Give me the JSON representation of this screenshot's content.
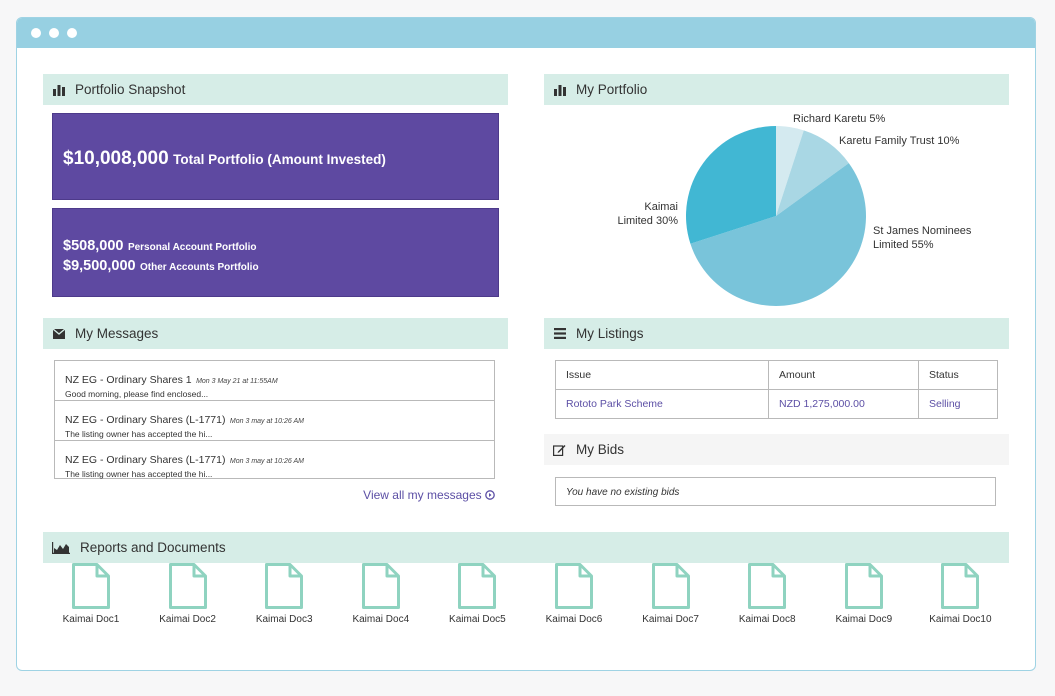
{
  "window": {
    "dots": [
      "dot",
      "dot",
      "dot"
    ]
  },
  "snapshot": {
    "title": "Portfolio Snapshot",
    "total_amount": "$10,008,000",
    "total_label": "Total Portfolio (Amount Invested)",
    "personal_amount": "$508,000",
    "personal_label": "Personal Account Portfolio",
    "other_amount": "$9,500,000",
    "other_label": "Other Accounts Portfolio"
  },
  "portfolio": {
    "title": "My Portfolio",
    "chart_data": {
      "type": "pie",
      "title": "My Portfolio",
      "slices": [
        {
          "label": "Richard Karetu",
          "value": 5,
          "color": "#d4eaf0"
        },
        {
          "label": "Karetu Family Trust",
          "value": 10,
          "color": "#a9d7e4"
        },
        {
          "label": "St James Nominees Limited",
          "value": 55,
          "color": "#79c4da"
        },
        {
          "label": "Kaimai Limited",
          "value": 30,
          "color": "#41b7d3"
        }
      ],
      "labels": {
        "richard": "Richard Karetu 5%",
        "karetu": "Karetu Family Trust 10%",
        "stjames_1": "St James Nominees",
        "stjames_2": "Limited 55%",
        "kaimai_1": "Kaimai",
        "kaimai_2": "Limited 30%"
      }
    }
  },
  "messages": {
    "title": "My Messages",
    "items": [
      {
        "title": "NZ EG - Ordinary Shares 1",
        "date": "Mon 3 May 21 at 11:55AM",
        "body": "Good morning, please find enclosed..."
      },
      {
        "title": "NZ EG - Ordinary Shares (L-1771)",
        "date": "Mon 3 may at 10:26 AM",
        "body": "The listing owner has accepted the hi..."
      },
      {
        "title": "NZ EG - Ordinary Shares (L-1771)",
        "date": "Mon 3 may at 10:26 AM",
        "body": "The listing owner has accepted the hi..."
      }
    ],
    "view_all": "View all my messages"
  },
  "listings": {
    "title": "My Listings",
    "columns": [
      "Issue",
      "Amount",
      "Status"
    ],
    "rows": [
      {
        "issue": "Rototo Park Scheme",
        "amount": "NZD 1,275,000.00",
        "status": "Selling"
      }
    ]
  },
  "bids": {
    "title": "My Bids",
    "empty": "You have no existing bids"
  },
  "reports": {
    "title": "Reports and Documents",
    "docs": [
      "Kaimai Doc1",
      "Kaimai Doc2",
      "Kaimai Doc3",
      "Kaimai Doc4",
      "Kaimai Doc5",
      "Kaimai Doc6",
      "Kaimai Doc7",
      "Kaimai Doc8",
      "Kaimai Doc9",
      "Kaimai Doc10"
    ]
  },
  "colors": {
    "accent": "#5e49a1",
    "header_bg": "#d6ede7",
    "titlebar": "#97d0e2",
    "doc_icon": "#8fd3c0",
    "link": "#5c4fa5"
  }
}
